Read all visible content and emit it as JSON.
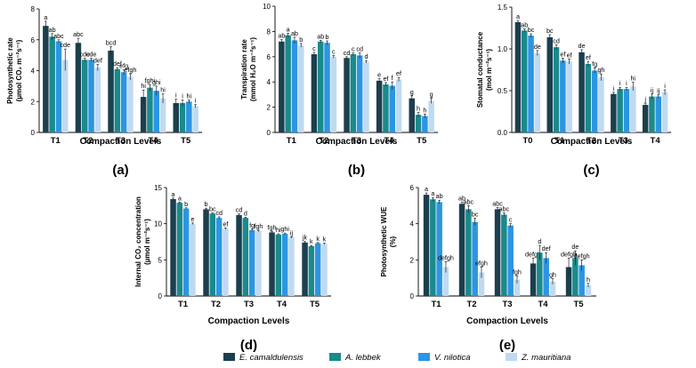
{
  "colors": {
    "series": [
      "#1c3f4e",
      "#1a8a8c",
      "#2c95e3",
      "#bfdaf2"
    ]
  },
  "legend": {
    "entries": [
      "E. camaldulensis",
      "A. lebbek",
      "V. nilotica",
      "Z. mauritiana"
    ]
  },
  "chart_data": [
    {
      "type": "bar",
      "panel": "(a)",
      "title": "",
      "xlabel": "Compaction Levels",
      "ylabel": "Photosynthetic rate (µmol CO₂ m⁻²s⁻¹)",
      "ylabel_lines": [
        "Photosynthetic rate",
        "(µmol CO₂ m⁻²s⁻¹)"
      ],
      "ylim": [
        0,
        8
      ],
      "yticks": [
        "0",
        "2",
        "4",
        "6",
        "8"
      ],
      "categories": [
        "T1",
        "T2",
        "T3",
        "T4",
        "T5"
      ],
      "series": [
        {
          "name": "E. camaldulensis",
          "values": [
            6.9,
            5.8,
            5.3,
            2.3,
            1.9
          ],
          "errors": [
            0.3,
            0.3,
            0.25,
            0.45,
            0.25
          ],
          "letters": [
            "a",
            "abc",
            "bcd",
            "hi",
            "i"
          ]
        },
        {
          "name": "A. lebbek",
          "values": [
            6.2,
            4.7,
            4.1,
            2.9,
            1.9
          ],
          "errors": [
            0.2,
            0.1,
            0.1,
            0.2,
            0.2
          ],
          "letters": [
            "ab",
            "cde",
            "def",
            "fghi",
            "i"
          ]
        },
        {
          "name": "V. nilotica",
          "values": [
            5.9,
            4.7,
            3.9,
            2.7,
            2.0
          ],
          "errors": [
            0.1,
            0.1,
            0.15,
            0.3,
            0.1
          ],
          "letters": [
            "abc",
            "cde",
            "efg",
            "ghi",
            "hi"
          ]
        },
        {
          "name": "Z. mauritiana",
          "values": [
            4.7,
            4.2,
            3.6,
            2.2,
            1.7
          ],
          "errors": [
            0.7,
            0.2,
            0.2,
            0.3,
            0.1
          ],
          "letters": [
            "cde",
            "def",
            "efgh",
            "hi",
            "i"
          ]
        }
      ]
    },
    {
      "type": "bar",
      "panel": "(b)",
      "title": "",
      "xlabel": "Compaction Levels",
      "ylabel": "Transpiration rate (mmol H₂O m⁻²s⁻¹)",
      "ylabel_lines": [
        "Transpiration rate",
        "(mmol H₂O m⁻²s⁻¹)"
      ],
      "ylim": [
        0,
        10
      ],
      "yticks": [
        "0",
        "2",
        "4",
        "6",
        "8",
        "10"
      ],
      "categories": [
        "T1",
        "T2",
        "T3",
        "T4",
        "T5"
      ],
      "series": [
        {
          "name": "E. camaldulensis",
          "values": [
            7.2,
            6.2,
            5.9,
            4.1,
            2.7
          ],
          "errors": [
            0.15,
            0.15,
            0.1,
            0.15,
            0.2
          ],
          "letters": [
            "ab",
            "c",
            "cd",
            "e",
            "g"
          ]
        },
        {
          "name": "A. lebbek",
          "values": [
            7.7,
            7.2,
            6.2,
            3.8,
            1.4
          ],
          "errors": [
            0.15,
            0.1,
            0.1,
            0.15,
            0.2
          ],
          "letters": [
            "a",
            "ab",
            "c",
            "ef",
            "h"
          ]
        },
        {
          "name": "V. nilotica",
          "values": [
            7.3,
            7.1,
            6.1,
            3.7,
            1.3
          ],
          "errors": [
            0.25,
            0.15,
            0.2,
            0.3,
            0.15
          ],
          "letters": [
            "ab",
            "b",
            "cd",
            "f",
            "h"
          ]
        },
        {
          "name": "Z. mauritiana",
          "values": [
            6.9,
            6.0,
            5.6,
            4.2,
            2.5
          ],
          "errors": [
            0.15,
            0.1,
            0.1,
            0.15,
            0.2
          ],
          "letters": [
            "b",
            "c",
            "d",
            "ef",
            "g"
          ]
        }
      ]
    },
    {
      "type": "bar",
      "panel": "(c)",
      "title": "",
      "xlabel": "Compaction Levels",
      "ylabel": "Stomatal conductance (mol m⁻²s⁻¹)",
      "ylabel_lines": [
        "Stomatal conductance",
        "(mol m⁻²s⁻¹)"
      ],
      "ylim": [
        0,
        1.5
      ],
      "yticks": [
        "0.0",
        "0.5",
        "1.0",
        "1.5"
      ],
      "categories": [
        "T0",
        "T1",
        "T2",
        "T3",
        "T4"
      ],
      "series": [
        {
          "name": "E. camaldulensis",
          "values": [
            1.32,
            1.14,
            0.96,
            0.46,
            0.33
          ],
          "errors": [
            0.02,
            0.03,
            0.03,
            0.02,
            0.02
          ],
          "letters": [
            "a",
            "bc",
            "de",
            "i",
            "j"
          ]
        },
        {
          "name": "A. lebbek",
          "values": [
            1.22,
            1.02,
            0.82,
            0.52,
            0.43
          ],
          "errors": [
            0.02,
            0.03,
            0.03,
            0.02,
            0.03
          ],
          "letters": [
            "ab",
            "cd",
            "ef",
            "i",
            "ij"
          ]
        },
        {
          "name": "V. nilotica",
          "values": [
            1.16,
            0.86,
            0.74,
            0.52,
            0.43
          ],
          "errors": [
            0.02,
            0.03,
            0.03,
            0.02,
            0.02
          ],
          "letters": [
            "bc",
            "ef",
            "fg",
            "i",
            "ij"
          ]
        },
        {
          "name": "Z. mauritiana",
          "values": [
            0.95,
            0.85,
            0.66,
            0.55,
            0.48
          ],
          "errors": [
            0.03,
            0.03,
            0.04,
            0.05,
            0.03
          ],
          "letters": [
            "de",
            "ef",
            "gh",
            "hi",
            "i"
          ]
        }
      ]
    },
    {
      "type": "bar",
      "panel": "(d)",
      "title": "",
      "xlabel": "Compaction Levels",
      "ylabel": "Internal CO₂ concentration (µmol m⁻²s⁻¹)",
      "ylabel_lines": [
        "Internal CO₂ concentration",
        "(µmol m⁻²s⁻¹)"
      ],
      "ylim": [
        0,
        15
      ],
      "yticks": [
        "0",
        "5",
        "10",
        "15"
      ],
      "categories": [
        "T1",
        "T2",
        "T3",
        "T4",
        "T5"
      ],
      "series": [
        {
          "name": "E. camaldulensis",
          "values": [
            13.4,
            12.0,
            11.2,
            8.8,
            7.4
          ],
          "errors": [
            0.15,
            0.15,
            0.15,
            0.1,
            0.15
          ],
          "letters": [
            "a",
            "b",
            "cd",
            "fgh",
            "jk"
          ]
        },
        {
          "name": "A. lebbek",
          "values": [
            12.9,
            11.4,
            10.8,
            8.5,
            6.9
          ],
          "errors": [
            0.1,
            0.1,
            0.1,
            0.1,
            0.1
          ],
          "letters": [
            "a",
            "bc",
            "d",
            "hi",
            "k"
          ]
        },
        {
          "name": "V. nilotica",
          "values": [
            12.1,
            10.8,
            9.1,
            8.6,
            7.3
          ],
          "errors": [
            0.1,
            0.15,
            0.15,
            0.1,
            0.1
          ],
          "letters": [
            "b",
            "cd",
            "fg",
            "ghi",
            "k"
          ]
        },
        {
          "name": "Z. mauritiana",
          "values": [
            10.0,
            9.3,
            9.0,
            8.1,
            7.2
          ],
          "errors": [
            0.1,
            0.1,
            0.1,
            0.1,
            0.1
          ],
          "letters": [
            "e",
            "ef",
            "fgh",
            "ij",
            "k"
          ]
        }
      ]
    },
    {
      "type": "bar",
      "panel": "(e)",
      "title": "",
      "xlabel": "Compaction Levels",
      "ylabel": "Photosynthetic WUE (%)",
      "ylabel_lines": [
        "Photosynthetic WUE",
        "(%)"
      ],
      "ylim": [
        0,
        6
      ],
      "yticks": [
        "0",
        "2",
        "4",
        "6"
      ],
      "categories": [
        "T1",
        "T2",
        "T3",
        "T4",
        "T5"
      ],
      "series": [
        {
          "name": "E. camaldulensis",
          "values": [
            5.6,
            5.1,
            4.8,
            1.8,
            1.6
          ],
          "errors": [
            0.1,
            0.1,
            0.1,
            0.3,
            0.5
          ],
          "letters": [
            "a",
            "ab",
            "abc",
            "defgh",
            "defgh"
          ]
        },
        {
          "name": "A. lebbek",
          "values": [
            5.35,
            4.8,
            4.5,
            2.4,
            2.1
          ],
          "errors": [
            0.1,
            0.2,
            0.1,
            0.4,
            0.4
          ],
          "letters": [
            "a",
            "abc",
            "abc",
            "d",
            "de"
          ]
        },
        {
          "name": "V. nilotica",
          "values": [
            5.2,
            4.1,
            3.9,
            2.1,
            1.7
          ],
          "errors": [
            0.1,
            0.2,
            0.1,
            0.3,
            0.3
          ],
          "letters": [
            "ab",
            "bc",
            "c",
            "def",
            "defgh"
          ]
        },
        {
          "name": "Z. mauritiana",
          "values": [
            1.6,
            1.3,
            0.9,
            0.8,
            0.6
          ],
          "errors": [
            0.3,
            0.3,
            0.2,
            0.15,
            0.1
          ],
          "letters": [
            "defgh",
            "efgh",
            "fgh",
            "gh",
            "h"
          ]
        }
      ]
    }
  ]
}
